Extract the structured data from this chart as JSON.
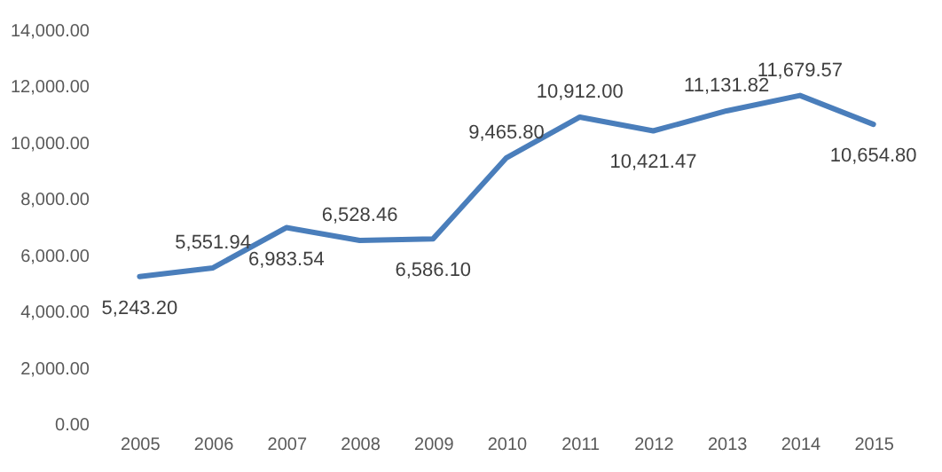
{
  "chart_data": {
    "type": "line",
    "categories": [
      "2005",
      "2006",
      "2007",
      "2008",
      "2009",
      "2010",
      "2011",
      "2012",
      "2013",
      "2014",
      "2015"
    ],
    "series": [
      {
        "color": "#4a7ebb",
        "values": [
          5243.2,
          5551.94,
          6983.54,
          6528.46,
          6586.1,
          9465.8,
          10912.0,
          10421.47,
          11131.82,
          11679.57,
          10654.8
        ],
        "value_labels": [
          "5,243.20",
          "5,551.94",
          "6,983.54",
          "6,528.46",
          "6,586.10",
          "9,465.80",
          "10,912.00",
          "10,421.47",
          "11,131.82",
          "11,679.57",
          "10,654.80"
        ]
      }
    ],
    "ylim": [
      0,
      14000
    ],
    "yticks": [
      {
        "value": 0,
        "label": "0.00"
      },
      {
        "value": 2000,
        "label": "2,000.00"
      },
      {
        "value": 4000,
        "label": "4,000.00"
      },
      {
        "value": 6000,
        "label": "6,000.00"
      },
      {
        "value": 8000,
        "label": "8,000.00"
      },
      {
        "value": 10000,
        "label": "10,000.00"
      },
      {
        "value": 12000,
        "label": "12,000.00"
      },
      {
        "value": 14000,
        "label": "14,000.00"
      }
    ],
    "grid": false,
    "marker": "none",
    "line_style": "solid"
  }
}
